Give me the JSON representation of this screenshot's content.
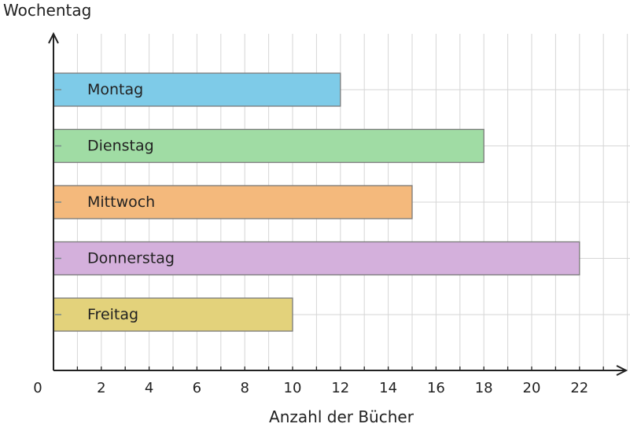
{
  "chart_data": {
    "type": "bar",
    "orientation": "horizontal",
    "title": "",
    "xlabel": "Anzahl der Bücher",
    "ylabel": "Wochentag",
    "categories": [
      "Montag",
      "Dienstag",
      "Mittwoch",
      "Donnerstag",
      "Freitag"
    ],
    "values": [
      12,
      18,
      15,
      22,
      10
    ],
    "colors": [
      "#7ecbe8",
      "#a0dca4",
      "#f4b97c",
      "#d4b0dc",
      "#e3d27b"
    ],
    "xlim": [
      0,
      24
    ],
    "xticks": [
      0,
      2,
      4,
      6,
      8,
      10,
      12,
      14,
      16,
      18,
      20,
      22
    ],
    "grid": true,
    "legend": "none",
    "labels_inside_bars": true
  }
}
